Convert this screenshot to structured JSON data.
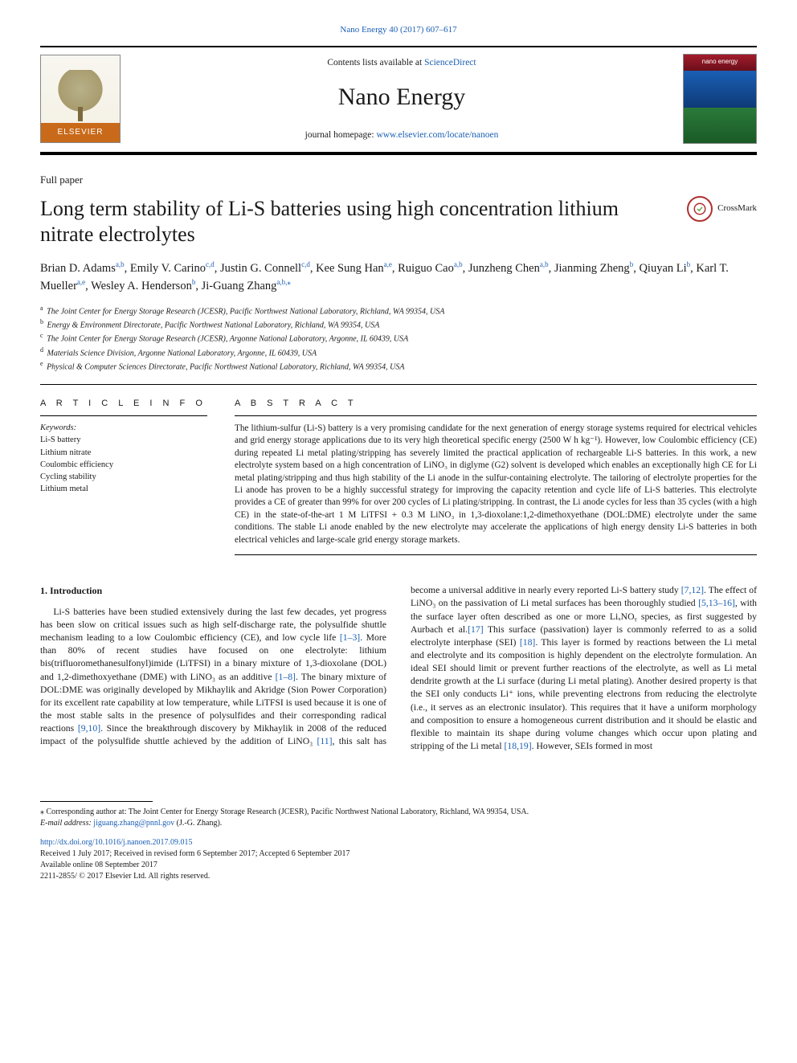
{
  "top_link": "Nano Energy 40 (2017) 607–617",
  "masthead": {
    "contents_prefix": "Contents lists available at ",
    "contents_link": "ScienceDirect",
    "journal_name": "Nano Energy",
    "homepage_prefix": "journal homepage: ",
    "homepage_link": "www.elsevier.com/locate/nanoen",
    "elsevier": "ELSEVIER",
    "cover_label": "nano energy"
  },
  "article_type": "Full paper",
  "title": "Long term stability of Li-S batteries using high concentration lithium nitrate electrolytes",
  "crossmark": "CrossMark",
  "authors_html": "Brian D. Adams<sup>a,b</sup>, Emily V. Carino<sup>c,d</sup>, Justin G. Connell<sup>c,d</sup>, Kee Sung Han<sup>a,e</sup>, Ruiguo Cao<sup>a,b</sup>, Junzheng Chen<sup>a,b</sup>, Jianming Zheng<sup>b</sup>, Qiuyan Li<sup>b</sup>, Karl T. Mueller<sup>a,e</sup>, Wesley A. Henderson<sup>b</sup>, Ji-Guang Zhang<sup>a,b,</sup><sup>⁎</sup>",
  "affiliations": [
    {
      "key": "a",
      "text": "The Joint Center for Energy Storage Research (JCESR), Pacific Northwest National Laboratory, Richland, WA 99354, USA"
    },
    {
      "key": "b",
      "text": "Energy & Environment Directorate, Pacific Northwest National Laboratory, Richland, WA 99354, USA"
    },
    {
      "key": "c",
      "text": "The Joint Center for Energy Storage Research (JCESR), Argonne National Laboratory, Argonne, IL 60439, USA"
    },
    {
      "key": "d",
      "text": "Materials Science Division, Argonne National Laboratory, Argonne, IL 60439, USA"
    },
    {
      "key": "e",
      "text": "Physical & Computer Sciences Directorate, Pacific Northwest National Laboratory, Richland, WA 99354, USA"
    }
  ],
  "article_info_header": "A R T I C L E  I N F O",
  "abstract_header": "A B S T R A C T",
  "keywords_label": "Keywords:",
  "keywords": [
    "Li-S battery",
    "Lithium nitrate",
    "Coulombic efficiency",
    "Cycling stability",
    "Lithium metal"
  ],
  "abstract": "The lithium-sulfur (Li-S) battery is a very promising candidate for the next generation of energy storage systems required for electrical vehicles and grid energy storage applications due to its very high theoretical specific energy (2500 W h kg⁻¹). However, low Coulombic efficiency (CE) during repeated Li metal plating/stripping has severely limited the practical application of rechargeable Li-S batteries. In this work, a new electrolyte system based on a high concentration of LiNO₃ in diglyme (G2) solvent is developed which enables an exceptionally high CE for Li metal plating/stripping and thus high stability of the Li anode in the sulfur-containing electrolyte. The tailoring of electrolyte properties for the Li anode has proven to be a highly successful strategy for improving the capacity retention and cycle life of Li-S batteries. This electrolyte provides a CE of greater than 99% for over 200 cycles of Li plating/stripping. In contrast, the Li anode cycles for less than 35 cycles (with a high CE) in the state-of-the-art 1 M LiTFSI + 0.3 M LiNO₃ in 1,3-dioxolane:1,2-dimethoxyethane (DOL:DME) electrolyte under the same conditions. The stable Li anode enabled by the new electrolyte may accelerate the applications of high energy density Li-S batteries in both electrical vehicles and large-scale grid energy storage markets.",
  "intro_header": "1. Introduction",
  "intro_para": "Li-S batteries have been studied extensively during the last few decades, yet progress has been slow on critical issues such as high self-discharge rate, the polysulfide shuttle mechanism leading to a low Coulombic efficiency (CE), and low cycle life [1–3]. More than 80% of recent studies have focused on one electrolyte: lithium bis(trifluoromethanesulfonyl)imide (LiTFSI) in a binary mixture of 1,3-dioxolane (DOL) and 1,2-dimethoxyethane (DME) with LiNO₃ as an additive [1–8]. The binary mixture of DOL:DME was originally developed by Mikhaylik and Akridge (Sion Power Corporation) for its excellent rate capability at low temperature, while LiTFSI is used because it is one of the most stable salts in the presence of polysulfides and their corresponding radical reactions [9,10]. Since the breakthrough discovery by Mikhaylik in 2008 of the reduced impact of the polysulfide shuttle achieved by the addition of LiNO₃ [11], this salt has become a universal additive in nearly every reported Li-S battery study [7,12]. The effect of LiNO₃ on the passivation of Li metal surfaces has been thoroughly studied [5,13–16], with the surface layer often described as one or more LiₓNOᵧ species, as first suggested by Aurbach et al.[17] This surface (passivation) layer is commonly referred to as a solid electrolyte interphase (SEI) [18]. This layer is formed by reactions between the Li metal and electrolyte and its composition is highly dependent on the electrolyte formulation. An ideal SEI should limit or prevent further reactions of the electrolyte, as well as Li metal dendrite growth at the Li surface (during Li metal plating). Another desired property is that the SEI only conducts Li⁺ ions, while preventing electrons from reducing the electrolyte (i.e., it serves as an electronic insulator). This requires that it have a uniform morphology and composition to ensure a homogeneous current distribution and it should be elastic and flexible to maintain its shape during volume changes which occur upon plating and stripping of the Li metal [18,19]. However, SEIs formed in most",
  "corresponding": "⁎ Corresponding author at: The Joint Center for Energy Storage Research (JCESR), Pacific Northwest National Laboratory, Richland, WA 99354, USA.",
  "email_label": "E-mail address: ",
  "email": "jiguang.zhang@pnnl.gov",
  "email_suffix": " (J.-G. Zhang).",
  "doi": "http://dx.doi.org/10.1016/j.nanoen.2017.09.015",
  "received": "Received 1 July 2017; Received in revised form 6 September 2017; Accepted 6 September 2017",
  "available": "Available online 08 September 2017",
  "copyright": "2211-2855/ © 2017 Elsevier Ltd. All rights reserved.",
  "refs": {
    "r1_3": "[1–3]",
    "r1_8": "[1–8]",
    "r9_10": "[9,10]",
    "r11": "[11]",
    "r7_12": "[7,12]",
    "r5_13_16": "[5,13–16]",
    "r17": "[17]",
    "r18": "[18]",
    "r18_19": "[18,19]"
  },
  "colors": {
    "link": "#1a5fb4",
    "text": "#1a1a1a",
    "elsevier_orange": "#c96a1a",
    "crossmark_ring": "#b03030"
  }
}
